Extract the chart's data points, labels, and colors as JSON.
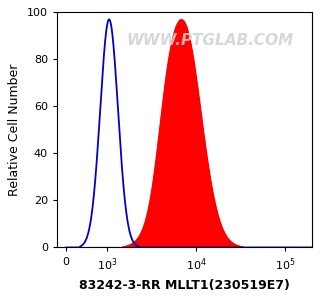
{
  "title": "",
  "xlabel": "83242-3-RR MLLT1(230519E7)",
  "ylabel": "Relative Cell Number",
  "watermark": "WWW.PTGLAB.COM",
  "ylim": [
    0,
    100
  ],
  "yticks": [
    0,
    20,
    40,
    60,
    80,
    100
  ],
  "blue_peak_log": 3.02,
  "blue_peak_height": 97,
  "blue_sigma": 0.1,
  "red_peak_log": 3.85,
  "red_peak_height": 95,
  "red_sigma": 0.2,
  "red_shoulder_log": 3.65,
  "red_shoulder_height": 80,
  "red_shoulder_sigma": 0.1,
  "blue_color": "#0000cc",
  "red_color": "#ff0000",
  "background_color": "#ffffff",
  "xlabel_fontsize": 9,
  "ylabel_fontsize": 9,
  "watermark_fontsize": 11,
  "tick_fontsize": 8,
  "linthresh": 500,
  "linscale": 0.15,
  "xlim_lo": -300,
  "xlim_hi": 200000
}
